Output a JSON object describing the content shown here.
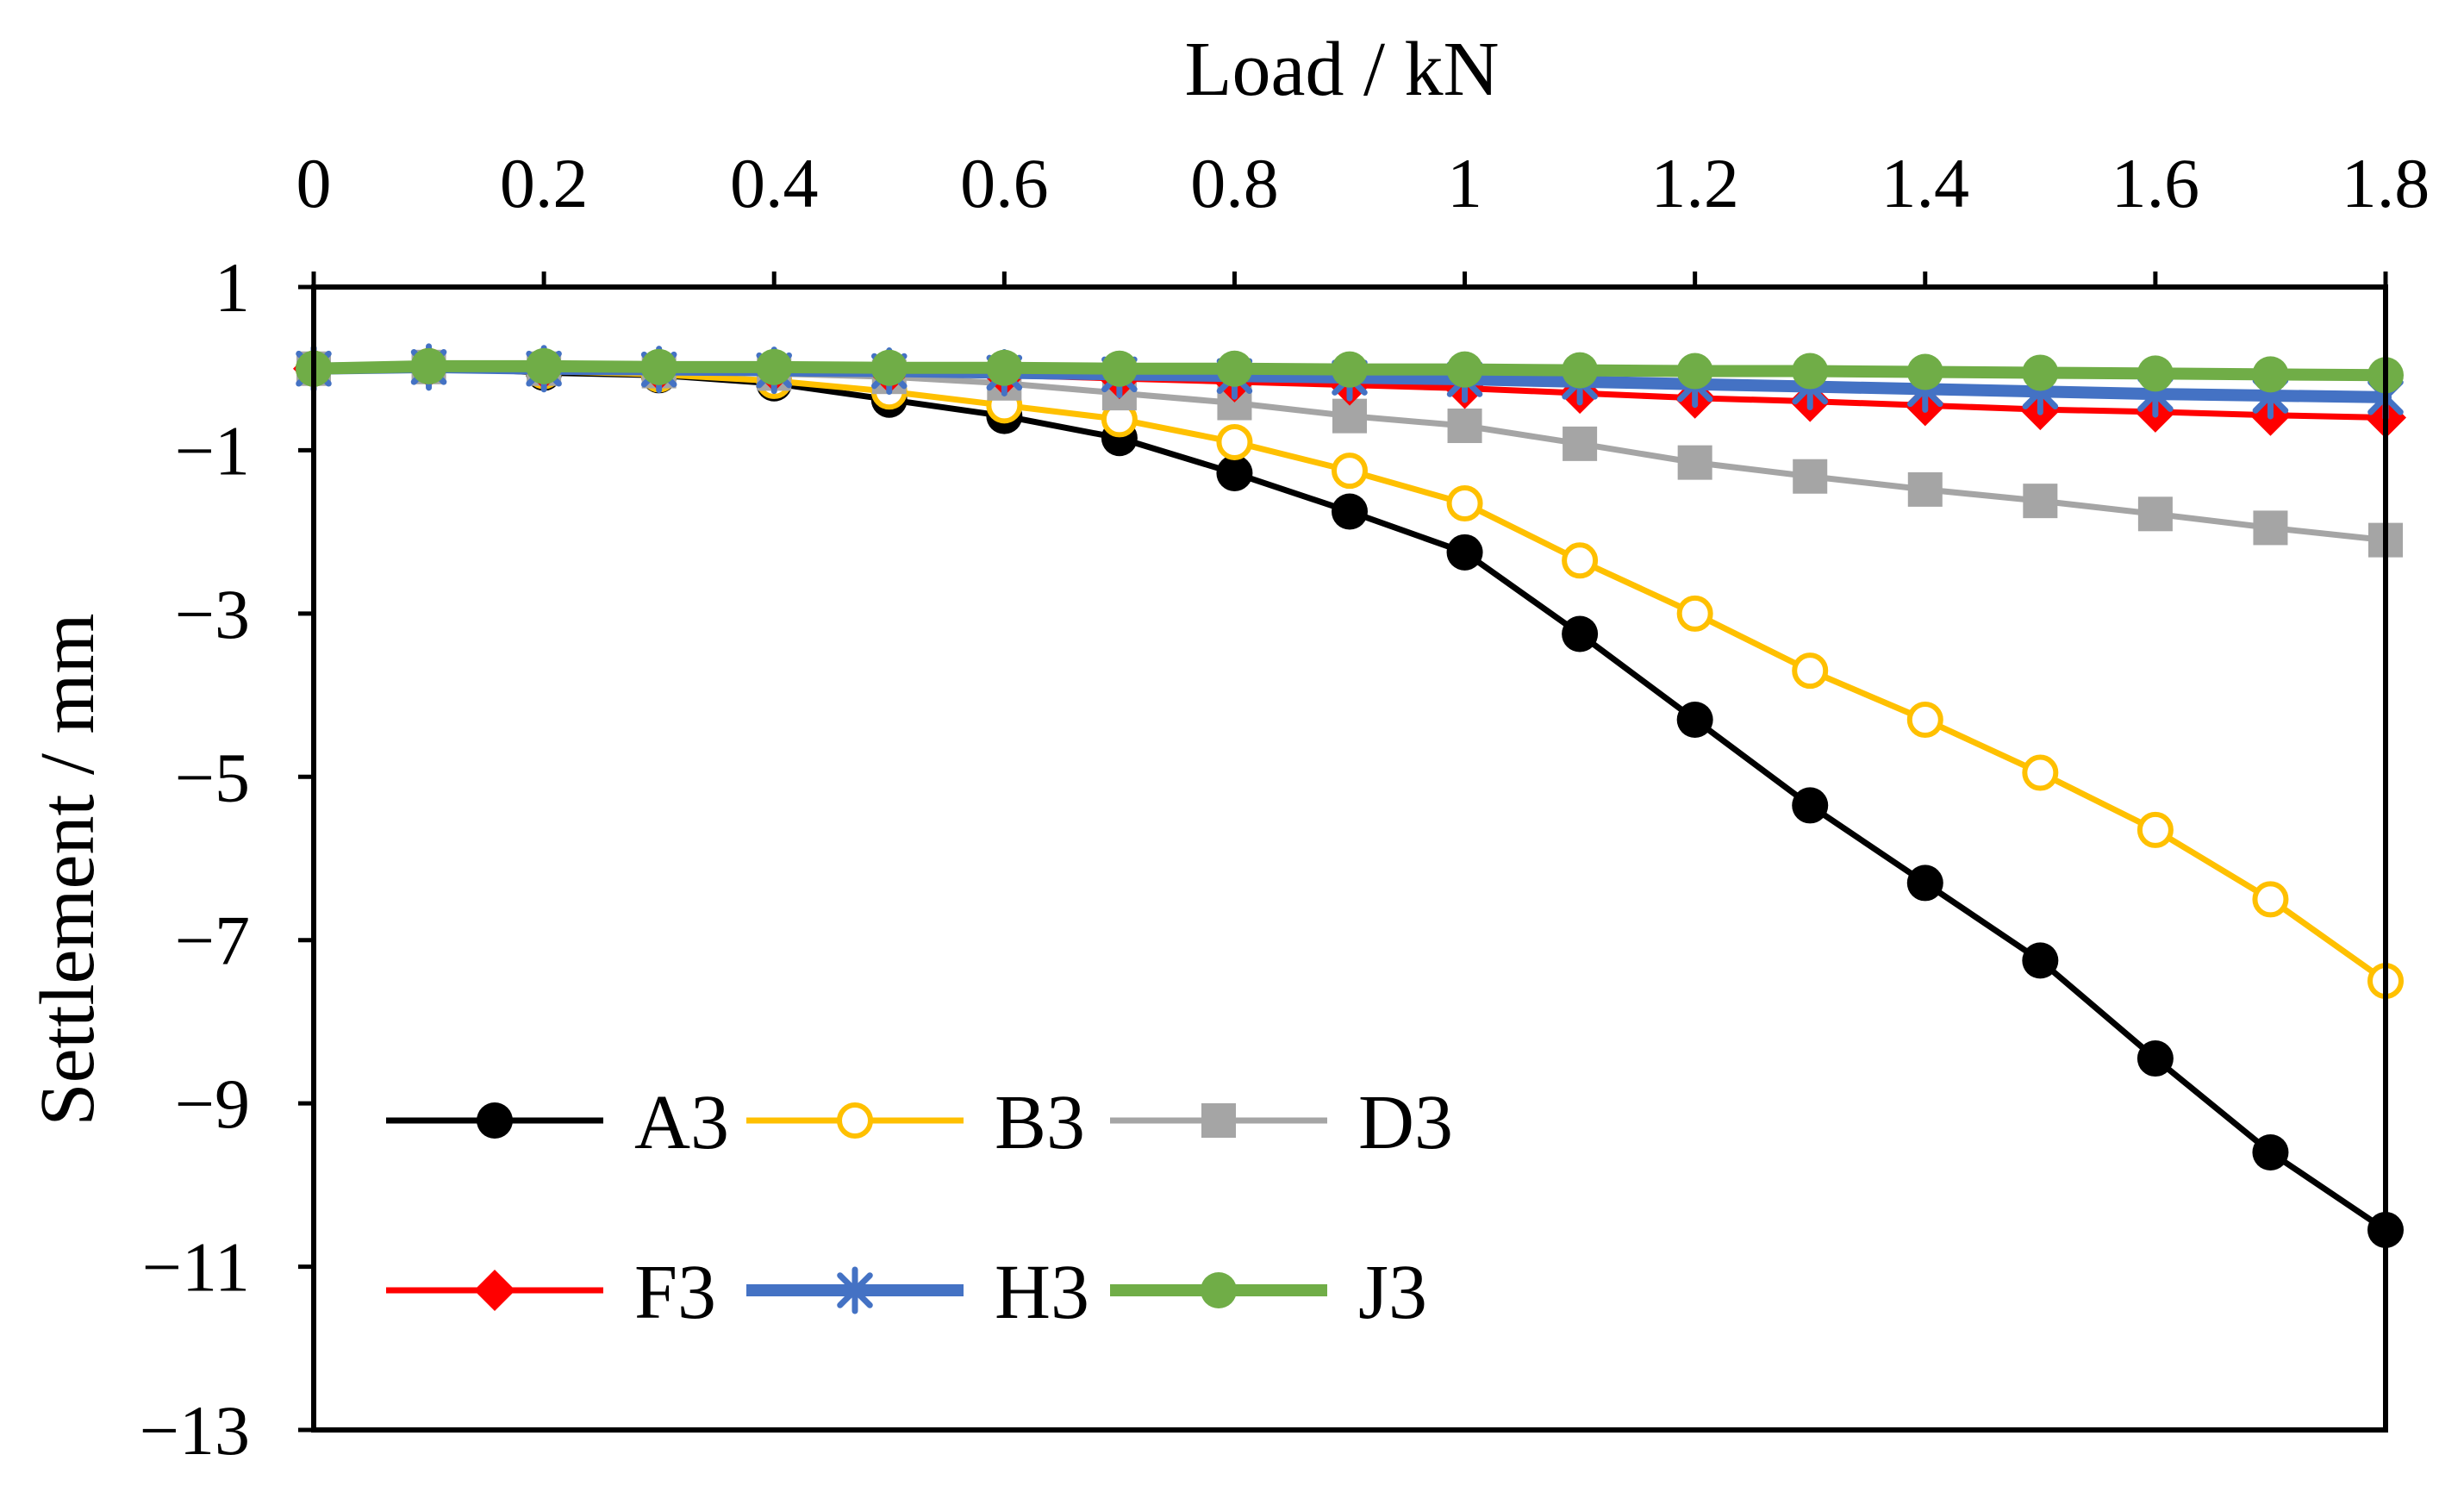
{
  "chart_data": {
    "type": "line",
    "title": "",
    "xlabel": "Load / kN",
    "ylabel": "Settlement / mm",
    "x_axis_position": "top",
    "xlim": [
      0,
      1.8
    ],
    "ylim": [
      -13,
      1
    ],
    "x_ticks": [
      0,
      0.2,
      0.4,
      0.6,
      0.8,
      1,
      1.2,
      1.4,
      1.6,
      1.8
    ],
    "x_tick_labels": [
      "0",
      "0.2",
      "0.4",
      "0.6",
      "0.8",
      "1",
      "1.2",
      "1.4",
      "1.6",
      "1.8"
    ],
    "y_ticks": [
      1,
      -1,
      -3,
      -5,
      -7,
      -9,
      -11,
      -13
    ],
    "y_tick_labels": [
      "1",
      "−1",
      "−3",
      "−5",
      "−7",
      "−9",
      "−11",
      "−13"
    ],
    "grid": false,
    "legend_position": "bottom-left",
    "x": [
      0,
      0.1,
      0.2,
      0.3,
      0.4,
      0.5,
      0.6,
      0.7,
      0.8,
      0.9,
      1.0,
      1.1,
      1.2,
      1.3,
      1.4,
      1.5,
      1.6,
      1.7,
      1.8
    ],
    "series": [
      {
        "name": "A3",
        "color": "#000000",
        "marker": "filled-circle",
        "line_width": "normal",
        "values": [
          0,
          0.03,
          -0.05,
          -0.08,
          -0.18,
          -0.38,
          -0.58,
          -0.85,
          -1.28,
          -1.75,
          -2.25,
          -3.25,
          -4.3,
          -5.35,
          -6.3,
          -7.25,
          -8.45,
          -9.6,
          -10.55
        ]
      },
      {
        "name": "B3",
        "color": "#FFC000",
        "marker": "open-circle",
        "line_width": "normal",
        "values": [
          0,
          0.03,
          -0.03,
          -0.07,
          -0.15,
          -0.28,
          -0.45,
          -0.62,
          -0.9,
          -1.25,
          -1.65,
          -2.35,
          -3.0,
          -3.7,
          -4.3,
          -4.95,
          -5.65,
          -6.5,
          -7.5
        ]
      },
      {
        "name": "D3",
        "color": "#A5A5A5",
        "marker": "square",
        "line_width": "normal",
        "values": [
          0,
          0.02,
          0.0,
          -0.03,
          -0.06,
          -0.1,
          -0.18,
          -0.3,
          -0.42,
          -0.58,
          -0.7,
          -0.92,
          -1.15,
          -1.32,
          -1.48,
          -1.62,
          -1.78,
          -1.95,
          -2.1
        ]
      },
      {
        "name": "F3",
        "color": "#FF0000",
        "marker": "diamond",
        "line_width": "normal",
        "values": [
          0,
          0.02,
          0.0,
          -0.02,
          -0.03,
          -0.05,
          -0.08,
          -0.12,
          -0.16,
          -0.2,
          -0.24,
          -0.3,
          -0.36,
          -0.4,
          -0.45,
          -0.5,
          -0.53,
          -0.57,
          -0.6
        ]
      },
      {
        "name": "H3",
        "color": "#4472C4",
        "marker": "star",
        "line_width": "thick",
        "values": [
          0,
          0.02,
          0.0,
          -0.01,
          -0.02,
          -0.03,
          -0.05,
          -0.07,
          -0.09,
          -0.11,
          -0.13,
          -0.16,
          -0.19,
          -0.22,
          -0.25,
          -0.28,
          -0.31,
          -0.33,
          -0.35
        ]
      },
      {
        "name": "J3",
        "color": "#70AD47",
        "marker": "filled-circle",
        "line_width": "thick",
        "values": [
          0,
          0.03,
          0.03,
          0.02,
          0.02,
          0.01,
          0.01,
          0.0,
          0.0,
          -0.01,
          -0.01,
          -0.02,
          -0.03,
          -0.03,
          -0.04,
          -0.05,
          -0.06,
          -0.07,
          -0.08
        ]
      }
    ]
  }
}
